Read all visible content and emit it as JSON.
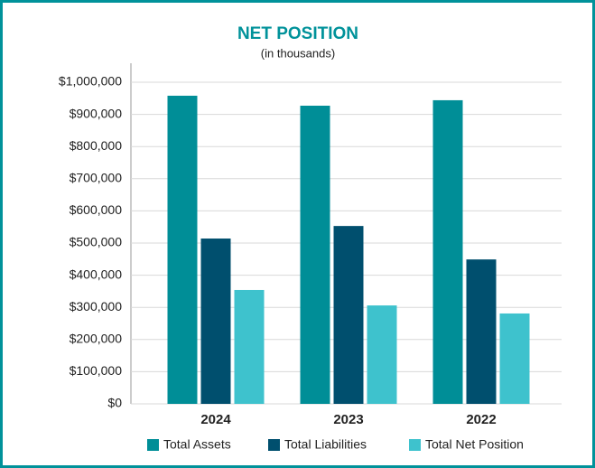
{
  "chart_data": {
    "type": "bar",
    "title": "NET POSITION",
    "subtitle": "(in thousands)",
    "categories": [
      "2024",
      "2023",
      "2022"
    ],
    "series": [
      {
        "name": "Total Assets",
        "color": "#008e97",
        "values": [
          958000,
          927000,
          944000
        ]
      },
      {
        "name": "Total Liabilities",
        "color": "#004f6e",
        "values": [
          514000,
          553000,
          449000
        ]
      },
      {
        "name": "Total Net Position",
        "color": "#3ec2cd",
        "values": [
          354000,
          306000,
          281000
        ]
      }
    ],
    "ylim": [
      0,
      1000000
    ],
    "yticks": [
      {
        "value": 0,
        "label": "$0"
      },
      {
        "value": 100000,
        "label": "$100,000"
      },
      {
        "value": 200000,
        "label": "$200,000"
      },
      {
        "value": 300000,
        "label": "$300,000"
      },
      {
        "value": 400000,
        "label": "$400,000"
      },
      {
        "value": 500000,
        "label": "$500,000"
      },
      {
        "value": 600000,
        "label": "$600,000"
      },
      {
        "value": 700000,
        "label": "$700,000"
      },
      {
        "value": 800000,
        "label": "$800,000"
      },
      {
        "value": 900000,
        "label": "$900,000"
      },
      {
        "value": 1000000,
        "label": "$1,000,000"
      }
    ],
    "grid": true,
    "legend": "bottom"
  }
}
